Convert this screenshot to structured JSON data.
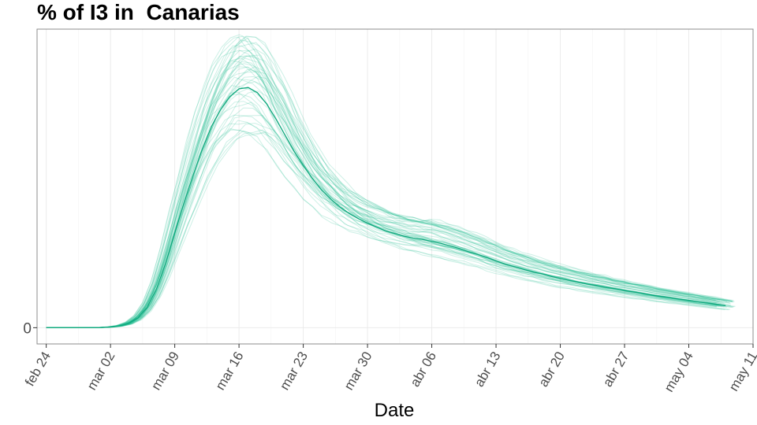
{
  "chart_data": {
    "type": "line",
    "title": "% of I3 in  Canarias",
    "xlabel": "Date",
    "ylabel": "",
    "x_ticks": [
      "feb 24",
      "mar 02",
      "mar 09",
      "mar 16",
      "mar 23",
      "mar 30",
      "abr 06",
      "abr 13",
      "abr 20",
      "abr 27",
      "may 04",
      "may 11"
    ],
    "y_ticks": [
      "0"
    ],
    "x_range_days": [
      -1.0,
      77.0
    ],
    "y_range": [
      -0.25,
      4.6
    ],
    "grid": true,
    "legend": "none",
    "colors": {
      "line": "#1aba8c",
      "grid": "#ebebeb",
      "border": "#8c8c8c"
    },
    "series": [
      {
        "x": [
          0,
          1,
          2,
          3,
          4,
          5,
          6,
          7,
          8,
          9,
          10,
          11,
          12,
          13,
          14,
          15,
          16,
          17,
          18,
          19,
          20,
          21,
          22,
          23,
          24,
          25,
          26,
          27,
          28,
          29,
          30,
          31,
          32,
          33,
          34,
          35,
          36,
          37,
          38,
          39,
          40,
          41,
          42,
          43,
          44,
          45,
          46,
          47,
          48,
          49,
          50,
          51,
          52,
          53,
          54,
          55,
          56,
          57,
          58,
          59,
          60,
          61,
          62,
          63,
          64,
          65,
          66,
          67,
          68,
          69,
          70,
          71,
          72,
          73,
          74
        ],
        "y": [
          0,
          0,
          0,
          0,
          0,
          0.001,
          0.004,
          0.011,
          0.028,
          0.068,
          0.153,
          0.317,
          0.595,
          0.992,
          1.457,
          1.92,
          2.35,
          2.75,
          3.1,
          3.36,
          3.56,
          3.68,
          3.7,
          3.62,
          3.45,
          3.22,
          2.97,
          2.72,
          2.5,
          2.3,
          2.12,
          1.98,
          1.86,
          1.76,
          1.68,
          1.61,
          1.55,
          1.49,
          1.45,
          1.41,
          1.38,
          1.36,
          1.33,
          1.3,
          1.26,
          1.22,
          1.17,
          1.13,
          1.08,
          1.03,
          0.98,
          0.94,
          0.9,
          0.86,
          0.83,
          0.79,
          0.76,
          0.73,
          0.7,
          0.67,
          0.65,
          0.62,
          0.6,
          0.57,
          0.55,
          0.53,
          0.5,
          0.48,
          0.46,
          0.44,
          0.42,
          0.4,
          0.38,
          0.36,
          0.34
        ]
      }
    ],
    "ensemble_count": 48
  }
}
